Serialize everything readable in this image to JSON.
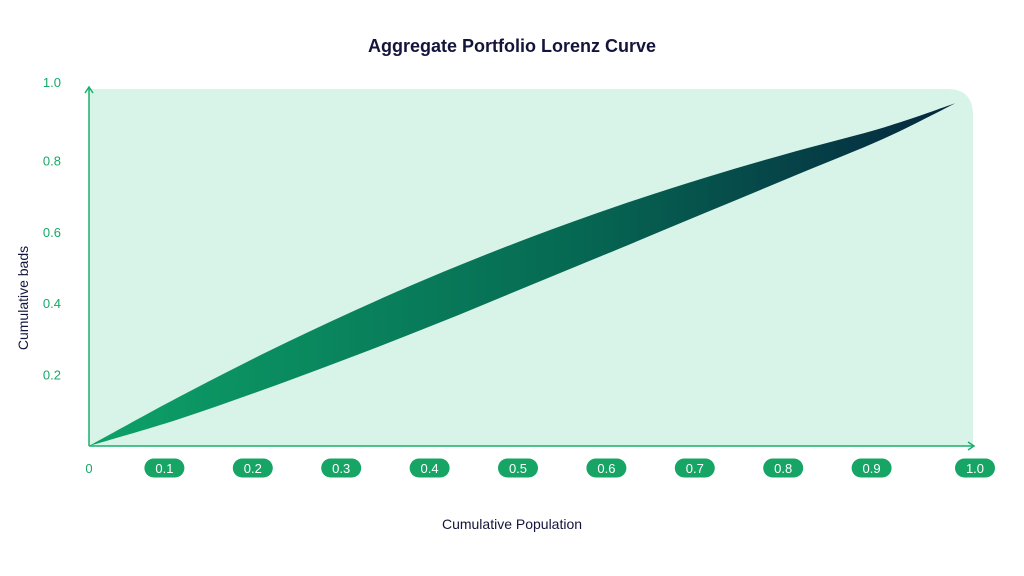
{
  "chart_data": {
    "type": "area",
    "title": "Aggregate Portfolio Lorenz Curve",
    "xlabel": "Cumulative Population",
    "ylabel": "Cumulative bads",
    "xlim": [
      0,
      1.0
    ],
    "ylim": [
      0,
      1.0
    ],
    "x_ticks": [
      "0",
      "0.1",
      "0.2",
      "0.3",
      "0.4",
      "0.5",
      "0.6",
      "0.7",
      "0.8",
      "0.9",
      "1.0"
    ],
    "y_ticks": [
      "0.2",
      "0.4",
      "0.6",
      "0.8",
      "1.0"
    ],
    "grid": false,
    "series": [
      {
        "x": [
          0,
          0.1,
          0.2,
          0.3,
          0.4,
          0.5,
          0.6,
          0.7,
          0.8,
          0.9,
          0.98
        ],
        "values": [
          0,
          0.135,
          0.262,
          0.379,
          0.487,
          0.585,
          0.674,
          0.754,
          0.826,
          0.893,
          0.96
        ]
      },
      {
        "x": [
          0,
          0.1,
          0.2,
          0.3,
          0.4,
          0.5,
          0.6,
          0.7,
          0.8,
          0.9,
          0.98
        ],
        "values": [
          0,
          0.074,
          0.16,
          0.252,
          0.349,
          0.451,
          0.553,
          0.656,
          0.759,
          0.862,
          0.96
        ]
      }
    ],
    "colors": {
      "background_fill": "#d8f3e7",
      "axis": "#18b06a",
      "tick_pill": "#17a565",
      "tick_pill_text": "#ffffff",
      "y_tick_text": "#18a866",
      "gradient_start": "#0da268",
      "gradient_mid": "#066a53",
      "gradient_end": "#05263f",
      "title_text": "#13153b"
    }
  }
}
